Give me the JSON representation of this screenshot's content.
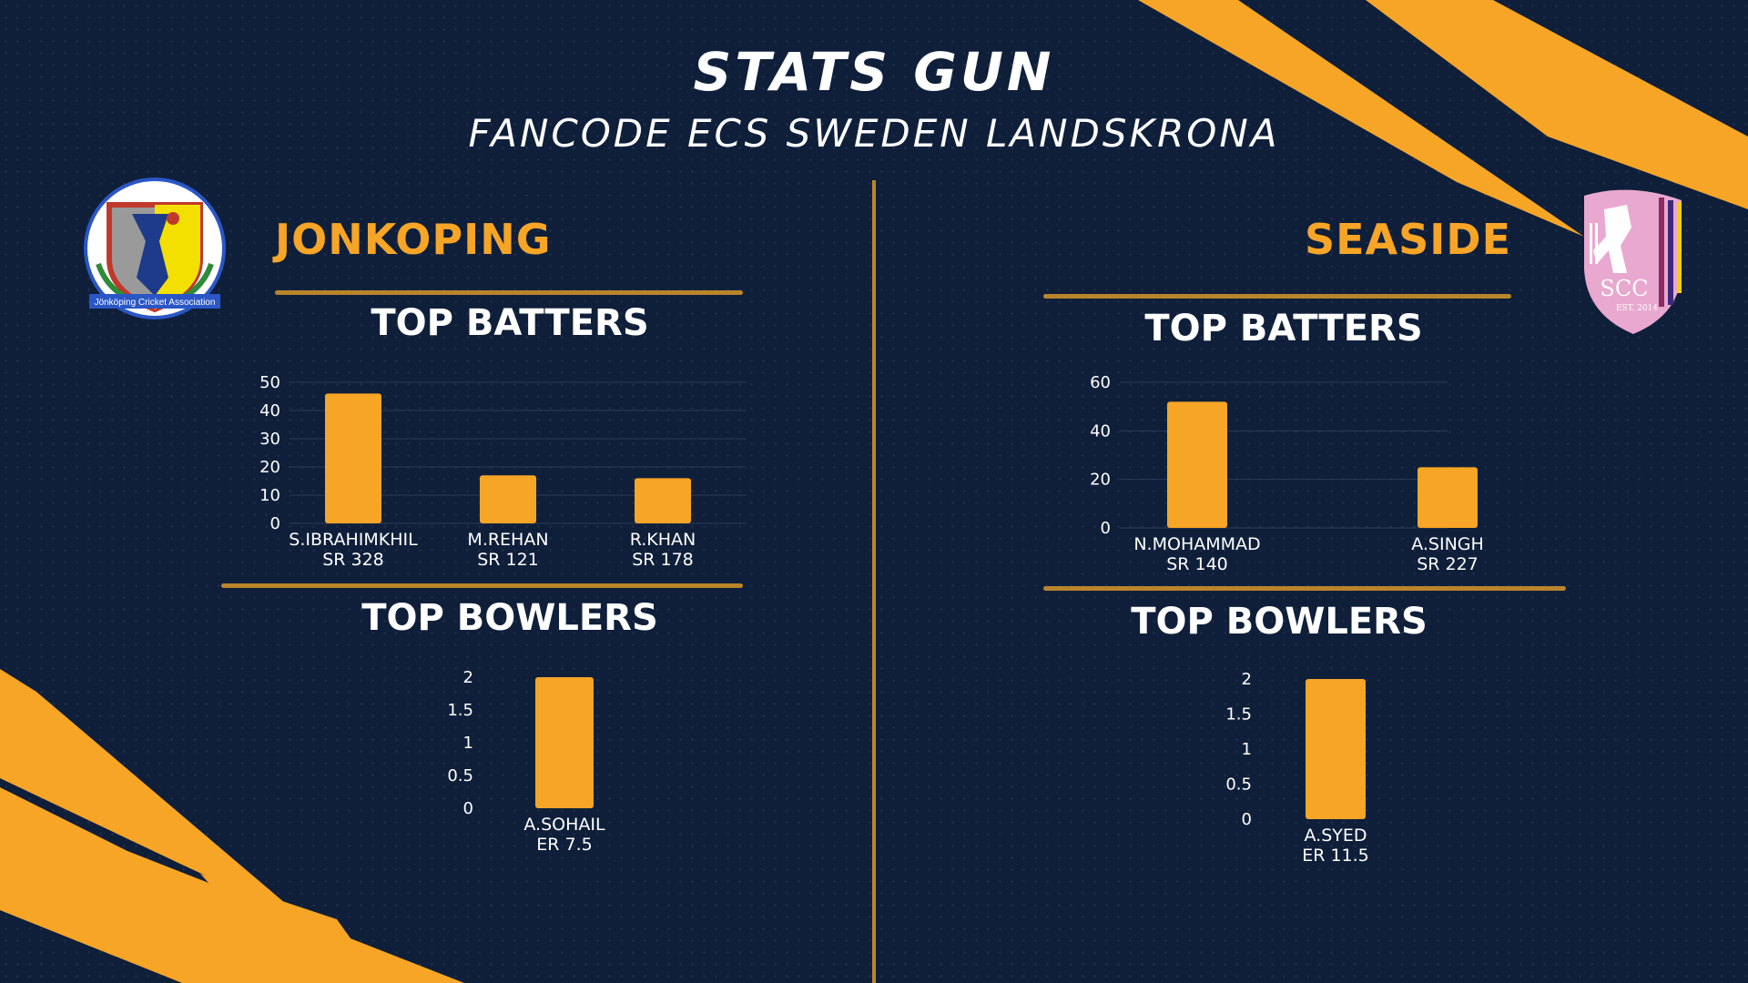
{
  "header": {
    "title": "STATS GUN",
    "subtitle": "FANCODE ECS SWEDEN LANDSKRONA"
  },
  "colors": {
    "background": "#0f1f3a",
    "accent": "#f7a526",
    "rule": "#b9852a",
    "grid": "#2b3a58"
  },
  "teams": {
    "left": {
      "name": "JONKOPING",
      "logo_icon": "jonkoping-cricket-association-logo",
      "logo_text": "Jönköping Cricket Association",
      "batters_heading": "TOP BATTERS",
      "bowlers_heading": "TOP BOWLERS"
    },
    "right": {
      "name": "SEASIDE",
      "logo_icon": "scc-shield-logo",
      "logo_text": "SCC",
      "logo_sub": "EST. 2014",
      "batters_heading": "TOP BATTERS",
      "bowlers_heading": "TOP BOWLERS"
    }
  },
  "chart_data": [
    {
      "id": "left-batters",
      "type": "bar",
      "categories": [
        "S.IBRAHIMKHIL",
        "M.REHAN",
        "R.KHAN"
      ],
      "sublabels": [
        "SR 328",
        "SR 121",
        "SR 178"
      ],
      "values": [
        46,
        17,
        16
      ],
      "yticks": [
        "0",
        "10",
        "20",
        "30",
        "40",
        "50"
      ],
      "ylim": [
        0,
        50
      ],
      "grid": true
    },
    {
      "id": "left-bowlers",
      "type": "bar",
      "categories": [
        "A.SOHAIL"
      ],
      "sublabels": [
        "ER 7.5"
      ],
      "values": [
        2
      ],
      "yticks": [
        "0",
        "0.5",
        "1",
        "1.5",
        "2"
      ],
      "ylim": [
        0,
        2
      ],
      "grid": false
    },
    {
      "id": "right-batters",
      "type": "bar",
      "categories": [
        "N.MOHAMMAD",
        "A.SINGH"
      ],
      "sublabels": [
        "SR 140",
        "SR 227"
      ],
      "values": [
        52,
        25
      ],
      "yticks": [
        "0",
        "20",
        "40",
        "60"
      ],
      "ylim": [
        0,
        60
      ],
      "grid": true
    },
    {
      "id": "right-bowlers",
      "type": "bar",
      "categories": [
        "A.SYED"
      ],
      "sublabels": [
        "ER 11.5"
      ],
      "values": [
        2
      ],
      "yticks": [
        "0",
        "0.5",
        "1",
        "1.5",
        "2"
      ],
      "ylim": [
        0,
        2
      ],
      "grid": false
    }
  ]
}
